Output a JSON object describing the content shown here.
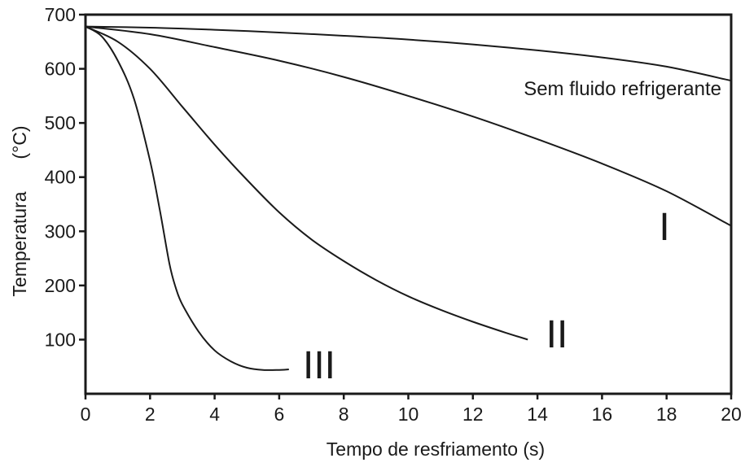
{
  "chart_data": {
    "type": "line",
    "title": "",
    "xlabel": "Tempo de resfriamento (s)",
    "ylabel_main": "Temperatura",
    "ylabel_unit": "(°C)",
    "xlim": [
      0,
      20
    ],
    "ylim": [
      0,
      700
    ],
    "x_ticks": [
      0,
      2,
      4,
      6,
      8,
      10,
      12,
      14,
      16,
      18,
      20
    ],
    "y_ticks": [
      100,
      200,
      300,
      400,
      500,
      600,
      700
    ],
    "grid": false,
    "legend": "none",
    "series": [
      {
        "name": "Sem fluido refrigerante",
        "x": [
          0,
          2,
          4,
          6,
          8,
          10,
          12,
          14,
          16,
          18,
          20
        ],
        "y": [
          678,
          676,
          672,
          667,
          661,
          654,
          645,
          634,
          621,
          604,
          578
        ]
      },
      {
        "name": "I",
        "x": [
          0,
          2,
          4,
          6,
          8,
          10,
          12,
          14,
          16,
          18,
          20
        ],
        "y": [
          678,
          664,
          640,
          615,
          585,
          550,
          512,
          470,
          425,
          374,
          310
        ]
      },
      {
        "name": "II",
        "x": [
          0,
          1,
          2,
          3,
          4,
          5,
          6,
          7,
          8,
          9,
          10,
          11,
          12,
          13,
          13.7
        ],
        "y": [
          678,
          650,
          600,
          530,
          460,
          395,
          335,
          285,
          245,
          210,
          180,
          155,
          133,
          113,
          100
        ]
      },
      {
        "name": "III",
        "x": [
          0,
          0.5,
          1,
          1.5,
          2,
          2.3,
          2.6,
          2.8,
          3,
          3.5,
          4,
          4.5,
          5,
          5.5,
          6,
          6.3
        ],
        "y": [
          678,
          660,
          615,
          545,
          430,
          340,
          240,
          195,
          165,
          115,
          80,
          60,
          48,
          44,
          44,
          45
        ]
      }
    ],
    "line_color": "#1a1a1a"
  }
}
